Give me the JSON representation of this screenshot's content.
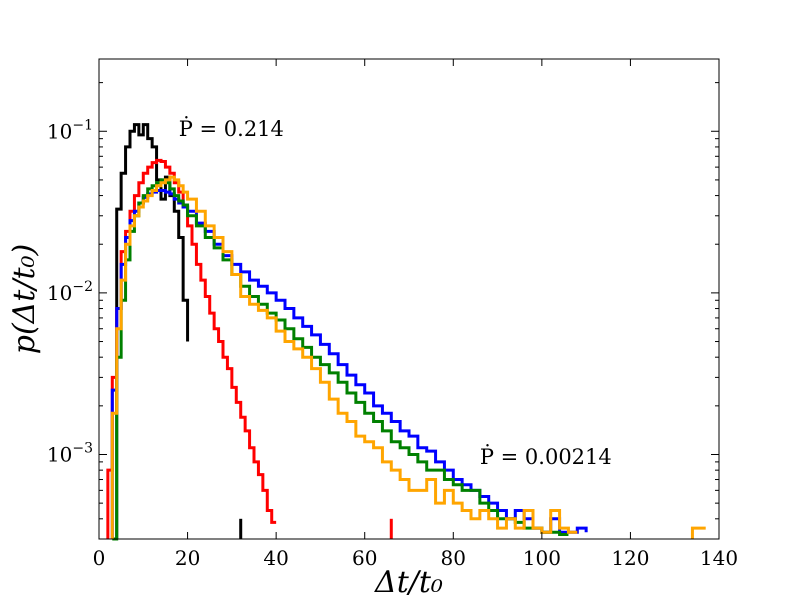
{
  "chart_data": {
    "type": "line",
    "title": "",
    "xlabel": "Δt/t₀",
    "ylabel": "p(Δt/t₀)",
    "xlim": [
      0,
      140
    ],
    "ylim": [
      0.0003,
      0.28
    ],
    "yscale": "log",
    "xticks": [
      0,
      20,
      40,
      60,
      80,
      100,
      120,
      140
    ],
    "yticks": [
      {
        "value": 0.001,
        "base": "10",
        "exp": "−3"
      },
      {
        "value": 0.01,
        "base": "10",
        "exp": "−2"
      },
      {
        "value": 0.1,
        "base": "10",
        "exp": "−1"
      }
    ],
    "grid": false,
    "annotations": [
      {
        "text": "Ṗ = 0.214",
        "x": 18,
        "y": 0.105
      },
      {
        "text": "Ṗ = 0.00214",
        "x": 86,
        "y": 0.00098
      }
    ],
    "series": [
      {
        "color": "#000000",
        "x": [
          4,
          5,
          6,
          7,
          8,
          9,
          10,
          11,
          12,
          13,
          14,
          15,
          16,
          17,
          18,
          19,
          20
        ],
        "y": [
          0.033,
          0.055,
          0.08,
          0.1,
          0.11,
          0.095,
          0.11,
          0.09,
          0.08,
          0.05,
          0.038,
          0.052,
          0.04,
          0.032,
          0.022,
          0.009,
          0.005
        ]
      },
      {
        "color": "#ff0000",
        "x": [
          2,
          3,
          4,
          5,
          6,
          7,
          8,
          9,
          10,
          11,
          12,
          13,
          14,
          15,
          16,
          17,
          18,
          19,
          20,
          21,
          22,
          23,
          24,
          25,
          26,
          27,
          28,
          29,
          30,
          31,
          32,
          33,
          34,
          35,
          36,
          37,
          38,
          39,
          40
        ],
        "y": [
          0.0008,
          0.003,
          0.008,
          0.018,
          0.024,
          0.032,
          0.04,
          0.048,
          0.055,
          0.06,
          0.064,
          0.066,
          0.065,
          0.06,
          0.055,
          0.048,
          0.042,
          0.034,
          0.026,
          0.02,
          0.015,
          0.012,
          0.0095,
          0.0075,
          0.006,
          0.005,
          0.004,
          0.0034,
          0.0026,
          0.0021,
          0.0017,
          0.0014,
          0.0011,
          0.0009,
          0.00075,
          0.0006,
          0.00045,
          0.00038,
          0.00038
        ]
      },
      {
        "color": "#0000ff",
        "x": [
          3,
          4,
          5,
          6,
          7,
          8,
          9,
          10,
          11,
          12,
          13,
          14,
          15,
          16,
          17,
          18,
          19,
          20,
          22,
          24,
          26,
          28,
          30,
          32,
          34,
          36,
          38,
          40,
          42,
          44,
          46,
          48,
          50,
          52,
          54,
          56,
          58,
          60,
          62,
          64,
          66,
          68,
          70,
          72,
          74,
          76,
          78,
          80,
          82,
          84,
          86,
          88,
          90,
          92,
          94,
          96,
          98,
          100,
          102,
          104,
          106,
          108,
          110
        ],
        "y": [
          0.0025,
          0.008,
          0.015,
          0.022,
          0.028,
          0.032,
          0.036,
          0.039,
          0.041,
          0.042,
          0.043,
          0.043,
          0.042,
          0.041,
          0.038,
          0.036,
          0.034,
          0.032,
          0.027,
          0.024,
          0.02,
          0.017,
          0.015,
          0.0135,
          0.012,
          0.011,
          0.01,
          0.009,
          0.008,
          0.007,
          0.0062,
          0.0055,
          0.0048,
          0.0042,
          0.0036,
          0.0031,
          0.0027,
          0.0024,
          0.002,
          0.0018,
          0.0016,
          0.0014,
          0.0013,
          0.0011,
          0.00105,
          0.0009,
          0.0008,
          0.0007,
          0.00065,
          0.0006,
          0.00055,
          0.0005,
          0.00045,
          0.0004,
          0.00045,
          0.0004,
          0.00035,
          0.00033,
          0.0004,
          0.00033,
          0.00033,
          0.00035,
          0.00033
        ]
      },
      {
        "color": "#008000",
        "x": [
          3,
          4,
          5,
          6,
          7,
          8,
          9,
          10,
          11,
          12,
          13,
          14,
          15,
          16,
          17,
          18,
          19,
          20,
          22,
          24,
          26,
          28,
          30,
          32,
          34,
          36,
          38,
          40,
          42,
          44,
          46,
          48,
          50,
          52,
          54,
          56,
          58,
          60,
          62,
          64,
          66,
          68,
          70,
          72,
          74,
          76,
          78,
          80,
          82,
          84,
          86,
          88,
          90,
          92,
          94,
          96,
          98,
          100,
          102,
          104,
          106
        ],
        "y": [
          0.0003,
          0.004,
          0.009,
          0.016,
          0.024,
          0.03,
          0.036,
          0.04,
          0.044,
          0.046,
          0.048,
          0.05,
          0.048,
          0.044,
          0.04,
          0.037,
          0.035,
          0.03,
          0.026,
          0.022,
          0.019,
          0.016,
          0.013,
          0.011,
          0.0095,
          0.0085,
          0.0075,
          0.0068,
          0.006,
          0.0052,
          0.0046,
          0.004,
          0.0036,
          0.0032,
          0.0028,
          0.0024,
          0.0021,
          0.0018,
          0.0016,
          0.0014,
          0.0012,
          0.0011,
          0.001,
          0.0009,
          0.0008,
          0.0008,
          0.0007,
          0.00065,
          0.0006,
          0.0006,
          0.0005,
          0.00045,
          0.0004,
          0.0004,
          0.00038,
          0.00035,
          0.00035,
          0.00033,
          0.00033,
          0.00032,
          0.00032
        ]
      },
      {
        "color": "#ffa500",
        "x": [
          3,
          4,
          5,
          6,
          7,
          8,
          9,
          10,
          11,
          12,
          13,
          14,
          15,
          16,
          17,
          18,
          19,
          20,
          22,
          24,
          26,
          28,
          30,
          32,
          34,
          36,
          38,
          40,
          42,
          44,
          46,
          48,
          50,
          52,
          54,
          56,
          58,
          60,
          62,
          64,
          66,
          68,
          70,
          72,
          74,
          76,
          78,
          80,
          82,
          84,
          86,
          88,
          90,
          92,
          94,
          96,
          98,
          100,
          102,
          104,
          106,
          108
        ],
        "y": [
          0.0018,
          0.006,
          0.012,
          0.02,
          0.026,
          0.03,
          0.034,
          0.037,
          0.04,
          0.043,
          0.046,
          0.048,
          0.05,
          0.052,
          0.05,
          0.046,
          0.042,
          0.038,
          0.032,
          0.026,
          0.022,
          0.018,
          0.013,
          0.0095,
          0.0085,
          0.0078,
          0.007,
          0.0058,
          0.005,
          0.0045,
          0.004,
          0.0034,
          0.0028,
          0.0022,
          0.0018,
          0.0016,
          0.0013,
          0.0012,
          0.0011,
          0.0009,
          0.0008,
          0.0007,
          0.0006,
          0.0006,
          0.0007,
          0.0005,
          0.0006,
          0.0005,
          0.00045,
          0.0004,
          0.00045,
          0.0004,
          0.00035,
          0.0004,
          0.00035,
          0.00045,
          0.00035,
          0.00033,
          0.00045,
          0.00035,
          0.00033,
          0.00033
        ]
      },
      {
        "color": "#000000",
        "x": [
          32
        ],
        "y": [
          0.0004
        ]
      },
      {
        "color": "#ff0000",
        "x": [
          66
        ],
        "y": [
          0.0004
        ]
      },
      {
        "color": "#ffa500",
        "x": [
          134,
          137
        ],
        "y": [
          0.00035,
          0.00035
        ]
      }
    ]
  }
}
